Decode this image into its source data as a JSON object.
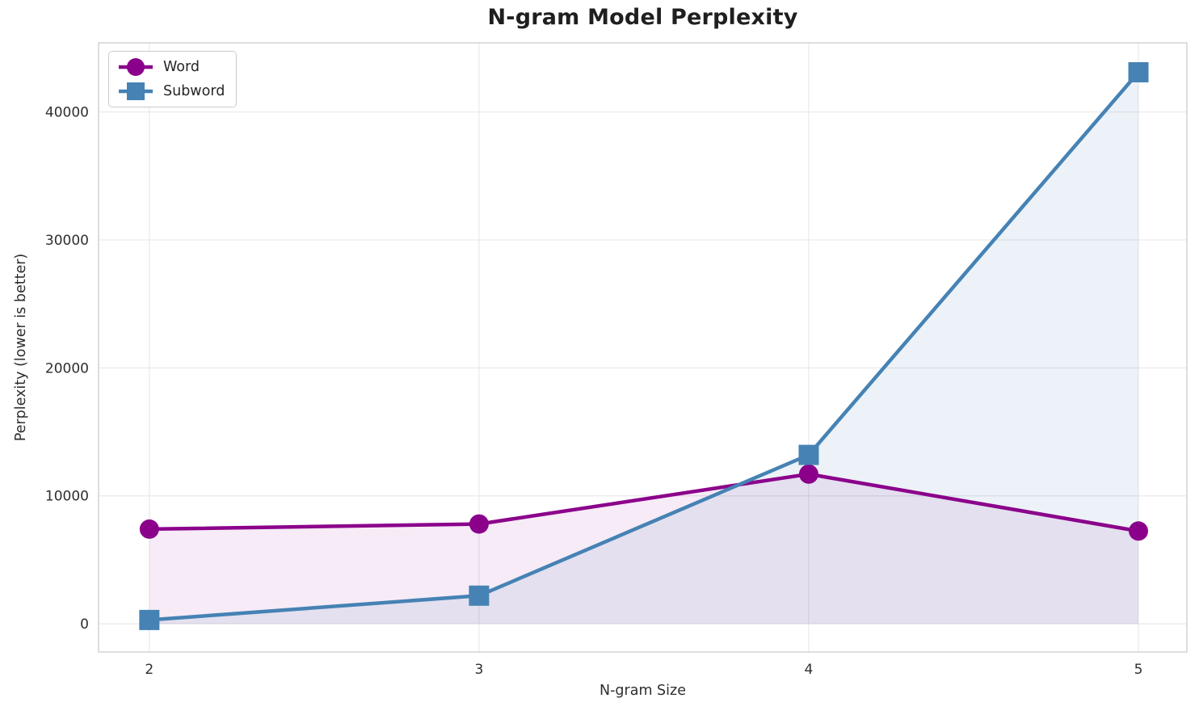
{
  "chart_data": {
    "type": "line",
    "title": "N-gram Model Perplexity",
    "xlabel": "N-gram Size",
    "ylabel": "Perplexity (lower is better)",
    "x": [
      2,
      3,
      4,
      5
    ],
    "series": [
      {
        "name": "Word",
        "values": [
          7400,
          7800,
          11700,
          7250
        ],
        "color": "#8B008B",
        "marker": "circle",
        "fill_opacity": 0.08
      },
      {
        "name": "Subword",
        "values": [
          300,
          2200,
          13200,
          43100
        ],
        "color": "#4682B4",
        "marker": "square",
        "fill_opacity": 0.1
      }
    ],
    "xticks": {
      "values": [
        2,
        3,
        4,
        5
      ],
      "labels": [
        "2",
        "3",
        "4",
        "5"
      ]
    },
    "yticks": {
      "values": [
        0,
        10000,
        20000,
        30000,
        40000
      ],
      "labels": [
        "0",
        "10000",
        "20000",
        "30000",
        "40000"
      ]
    },
    "xlim": [
      1.846,
      5.147
    ],
    "ylim": [
      -2200,
      45400
    ],
    "grid": true,
    "area_fill_to": 0,
    "legend": {
      "position": "upper-left",
      "labels": [
        "Word",
        "Subword"
      ]
    },
    "colors": {
      "grid": "#e9e9e9",
      "spine": "#d4d4d4",
      "tick_label": "#2e2e2e",
      "title": "#1f1f1f",
      "word": "#8B008B",
      "subword": "#4682B4",
      "background": "#ffffff"
    }
  }
}
